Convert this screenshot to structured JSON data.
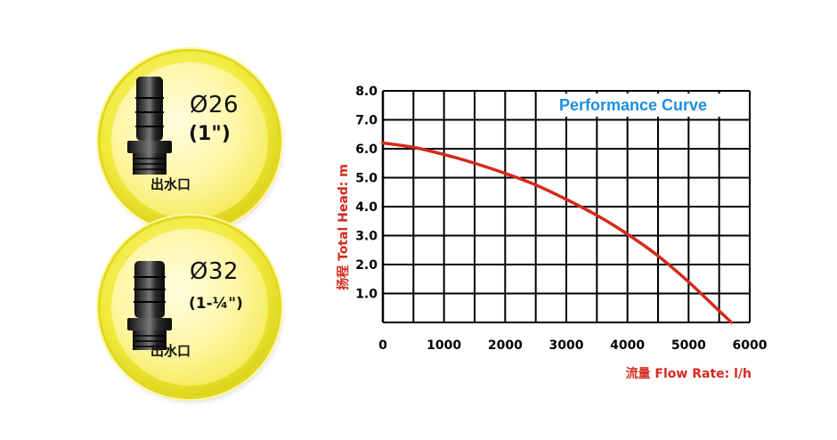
{
  "outlets": [
    {
      "diameter": "Ø26",
      "inch": "(1\")",
      "label": "出水口"
    },
    {
      "diameter": "Ø32",
      "inch": "(1-¼\")",
      "label": "出水口"
    }
  ],
  "colors": {
    "curve": "#d42a1c",
    "axis_title": "#d42a1c",
    "chart_title": "#1d8fe0",
    "badge_yellow": "#f1ea3c"
  },
  "chart_data": {
    "type": "line",
    "title": "Performance Curve",
    "xlabel": "流量 Flow Rate: l/h",
    "ylabel": "扬程 Total Head: m",
    "xlim": [
      0,
      6000
    ],
    "ylim": [
      0,
      8
    ],
    "x_ticks": [
      "0",
      "1000",
      "2000",
      "3000",
      "4000",
      "5000",
      "6000"
    ],
    "y_ticks": [
      "1.0",
      "2.0",
      "3.0",
      "4.0",
      "5.0",
      "6.0",
      "7.0",
      "8.0"
    ],
    "grid": true,
    "series": [
      {
        "x": [
          0,
          500,
          1000,
          1500,
          2000,
          2500,
          3000,
          3500,
          4000,
          4500,
          5000,
          5400,
          5700
        ],
        "y": [
          6.2,
          6.05,
          5.8,
          5.5,
          5.15,
          4.75,
          4.25,
          3.7,
          3.05,
          2.3,
          1.4,
          0.6,
          0.0
        ]
      }
    ]
  }
}
